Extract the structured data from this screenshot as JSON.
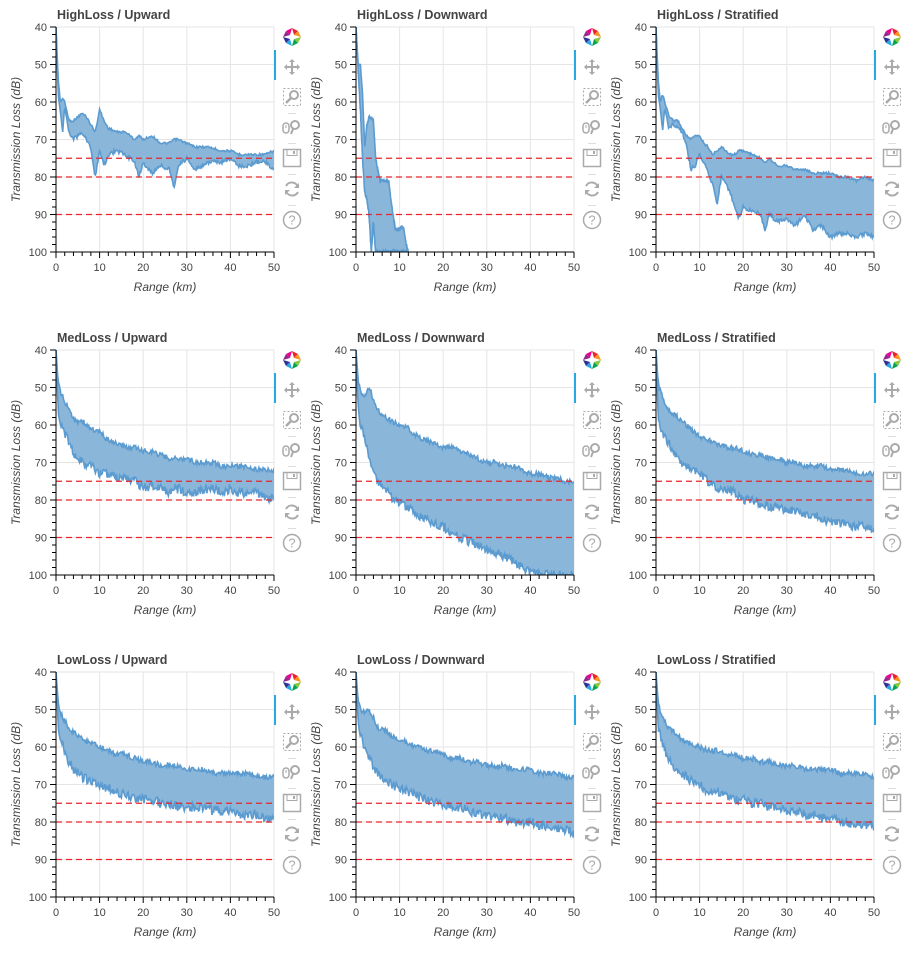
{
  "toolbar": {
    "icons": [
      "bokeh-logo-icon",
      "pan-icon",
      "box-zoom-icon",
      "wheel-zoom-icon",
      "save-icon",
      "reset-icon",
      "help-icon"
    ],
    "active_tool": "pan",
    "line_color": "#5b9bd0",
    "fill_color": "#8ab6da",
    "threshold_color": "#e8262b"
  },
  "chart_data": [
    {
      "type": "area",
      "title": "HighLoss / Upward",
      "xlabel": "Range (km)",
      "ylabel": "Transmission Loss (dB)",
      "xlim": [
        0,
        50
      ],
      "ylim": [
        100,
        40
      ],
      "y_inverted": true,
      "x_ticks": [
        "0",
        "10",
        "20",
        "30",
        "40",
        "50"
      ],
      "y_ticks": [
        "40",
        "50",
        "60",
        "70",
        "80",
        "90",
        "100"
      ],
      "grid": true,
      "thresholds": [
        75,
        80,
        90
      ],
      "x": [
        0,
        0.5,
        1,
        1.5,
        2,
        3,
        4,
        5,
        6,
        7,
        8,
        9,
        10,
        11,
        12,
        14,
        16,
        18,
        19,
        20,
        22,
        24,
        26,
        27,
        28,
        30,
        32,
        35,
        38,
        40,
        42,
        44,
        46,
        48,
        50
      ],
      "upper": [
        40,
        54,
        60,
        59,
        60,
        65,
        65,
        64,
        63,
        64,
        66,
        68,
        62,
        65,
        67,
        68,
        68,
        70,
        69,
        70,
        69,
        71,
        71,
        70,
        70,
        71,
        72,
        72,
        73,
        73,
        74,
        74,
        74,
        74,
        73
      ],
      "lower": [
        40,
        58,
        62,
        68,
        61,
        68,
        70,
        69,
        68,
        70,
        72,
        80,
        73,
        77,
        74,
        73,
        74,
        76,
        80,
        76,
        79,
        77,
        78,
        83,
        77,
        75,
        78,
        76,
        76,
        75,
        77,
        77,
        76,
        76,
        78
      ]
    },
    {
      "type": "area",
      "title": "HighLoss / Downward",
      "xlabel": "Range (km)",
      "ylabel": "Transmission Loss (dB)",
      "xlim": [
        0,
        50
      ],
      "ylim": [
        100,
        40
      ],
      "y_inverted": true,
      "x_ticks": [
        "0",
        "10",
        "20",
        "30",
        "40",
        "50"
      ],
      "y_ticks": [
        "40",
        "50",
        "60",
        "70",
        "80",
        "90",
        "100"
      ],
      "grid": true,
      "thresholds": [
        75,
        80,
        90
      ],
      "x": [
        0,
        0.5,
        1,
        1.5,
        2,
        2.5,
        3,
        3.5,
        4,
        4.5,
        5,
        5.5,
        6,
        7,
        7.5,
        8,
        8.5,
        9,
        10,
        10.5,
        11,
        11.5,
        12
      ],
      "upper": [
        40,
        50,
        50,
        58,
        72,
        66,
        64,
        64,
        65,
        75,
        78,
        81,
        81,
        81,
        81,
        86,
        90,
        94,
        94,
        93,
        94,
        98,
        100
      ],
      "lower": [
        40,
        52,
        62,
        75,
        84,
        86,
        90,
        100,
        92,
        100,
        100,
        100,
        100,
        100,
        100,
        100,
        100,
        100,
        100,
        100,
        100,
        100,
        100
      ]
    },
    {
      "type": "area",
      "title": "HighLoss / Stratified",
      "xlabel": "Range (km)",
      "ylabel": "Transmission Loss (dB)",
      "xlim": [
        0,
        50
      ],
      "ylim": [
        100,
        40
      ],
      "y_inverted": true,
      "x_ticks": [
        "0",
        "10",
        "20",
        "30",
        "40",
        "50"
      ],
      "y_ticks": [
        "40",
        "50",
        "60",
        "70",
        "80",
        "90",
        "100"
      ],
      "grid": true,
      "thresholds": [
        75,
        80,
        90
      ],
      "x": [
        0,
        0.5,
        1,
        1.5,
        2,
        3,
        4,
        5,
        6,
        7,
        8,
        9,
        10,
        11,
        12,
        13,
        14,
        15,
        16,
        17,
        18,
        19,
        20,
        22,
        24,
        25,
        26,
        28,
        30,
        32,
        34,
        36,
        38,
        40,
        42,
        44,
        46,
        48,
        50
      ],
      "upper": [
        40,
        54,
        60,
        58,
        60,
        64,
        65,
        65,
        67,
        69,
        70,
        69,
        69,
        71,
        72,
        74,
        73,
        72,
        73,
        74,
        74,
        73,
        73,
        74,
        75,
        76,
        75,
        77,
        77,
        78,
        78,
        79,
        79,
        79,
        80,
        80,
        81,
        80,
        81
      ],
      "lower": [
        40,
        58,
        62,
        68,
        62,
        67,
        66,
        67,
        68,
        72,
        78,
        77,
        74,
        76,
        79,
        82,
        87,
        80,
        82,
        84,
        88,
        91,
        88,
        89,
        90,
        94,
        90,
        92,
        91,
        93,
        90,
        94,
        93,
        96,
        95,
        95,
        96,
        95,
        96
      ]
    },
    {
      "type": "area",
      "title": "MedLoss / Upward",
      "xlabel": "Range (km)",
      "ylabel": "Transmission Loss (dB)",
      "xlim": [
        0,
        50
      ],
      "ylim": [
        100,
        40
      ],
      "y_inverted": true,
      "x_ticks": [
        "0",
        "10",
        "20",
        "30",
        "40",
        "50"
      ],
      "y_ticks": [
        "40",
        "50",
        "60",
        "70",
        "80",
        "90",
        "100"
      ],
      "grid": true,
      "thresholds": [
        75,
        80,
        90
      ],
      "x": [
        0,
        0.5,
        1,
        2,
        3,
        4,
        5,
        6,
        8,
        10,
        12,
        14,
        16,
        18,
        20,
        22,
        24,
        26,
        28,
        30,
        32,
        34,
        36,
        38,
        40,
        42,
        44,
        46,
        48,
        50
      ],
      "upper": [
        40,
        49,
        51,
        54,
        56,
        58,
        59,
        59,
        61,
        62,
        64,
        65,
        66,
        66,
        67,
        67,
        68,
        69,
        69,
        69,
        70,
        70,
        70,
        71,
        71,
        71,
        71,
        72,
        72,
        72
      ],
      "lower": [
        40,
        56,
        60,
        62,
        65,
        68,
        69,
        70,
        71,
        73,
        73,
        74,
        74,
        75,
        77,
        76,
        77,
        78,
        77,
        78,
        78,
        77,
        77,
        78,
        77,
        78,
        78,
        78,
        79,
        80
      ]
    },
    {
      "type": "area",
      "title": "MedLoss / Downward",
      "xlabel": "Range (km)",
      "ylabel": "Transmission Loss (dB)",
      "xlim": [
        0,
        50
      ],
      "ylim": [
        100,
        40
      ],
      "y_inverted": true,
      "x_ticks": [
        "0",
        "10",
        "20",
        "30",
        "40",
        "50"
      ],
      "y_ticks": [
        "40",
        "50",
        "60",
        "70",
        "80",
        "90",
        "100"
      ],
      "grid": true,
      "thresholds": [
        75,
        80,
        90
      ],
      "x": [
        0,
        0.5,
        1,
        2,
        3,
        4,
        5,
        6,
        8,
        10,
        12,
        14,
        16,
        18,
        20,
        22,
        24,
        26,
        28,
        30,
        32,
        34,
        36,
        38,
        40,
        42,
        44,
        46,
        48,
        50
      ],
      "upper": [
        40,
        48,
        51,
        52,
        50,
        53,
        56,
        57,
        59,
        60,
        61,
        63,
        64,
        65,
        66,
        66,
        67,
        68,
        69,
        70,
        70,
        71,
        71,
        72,
        73,
        73,
        74,
        74,
        75,
        75
      ],
      "lower": [
        40,
        56,
        60,
        64,
        68,
        72,
        75,
        76,
        79,
        81,
        82,
        84,
        85,
        86,
        87,
        89,
        90,
        91,
        92,
        93,
        94,
        95,
        96,
        98,
        99,
        100,
        100,
        100,
        100,
        100
      ]
    },
    {
      "type": "area",
      "title": "MedLoss / Stratified",
      "xlabel": "Range (km)",
      "ylabel": "Transmission Loss (dB)",
      "xlim": [
        0,
        50
      ],
      "ylim": [
        100,
        40
      ],
      "y_inverted": true,
      "x_ticks": [
        "0",
        "10",
        "20",
        "30",
        "40",
        "50"
      ],
      "y_ticks": [
        "40",
        "50",
        "60",
        "70",
        "80",
        "90",
        "100"
      ],
      "grid": true,
      "thresholds": [
        75,
        80,
        90
      ],
      "x": [
        0,
        0.5,
        1,
        2,
        3,
        4,
        5,
        6,
        8,
        10,
        12,
        14,
        16,
        18,
        20,
        22,
        24,
        26,
        28,
        30,
        32,
        34,
        36,
        38,
        40,
        42,
        44,
        46,
        48,
        50
      ],
      "upper": [
        40,
        49,
        51,
        54,
        56,
        57,
        58,
        59,
        61,
        63,
        64,
        65,
        66,
        66,
        67,
        68,
        68,
        69,
        69,
        70,
        70,
        71,
        71,
        71,
        72,
        72,
        72,
        73,
        73,
        73
      ],
      "lower": [
        40,
        58,
        61,
        63,
        65,
        67,
        69,
        70,
        72,
        73,
        75,
        77,
        77,
        78,
        80,
        80,
        81,
        82,
        82,
        83,
        83,
        84,
        84,
        85,
        86,
        86,
        87,
        87,
        87,
        88
      ]
    },
    {
      "type": "area",
      "title": "LowLoss / Upward",
      "xlabel": "Range (km)",
      "ylabel": "Transmission Loss (dB)",
      "xlim": [
        0,
        50
      ],
      "ylim": [
        100,
        40
      ],
      "y_inverted": true,
      "x_ticks": [
        "0",
        "10",
        "20",
        "30",
        "40",
        "50"
      ],
      "y_ticks": [
        "40",
        "50",
        "60",
        "70",
        "80",
        "90",
        "100"
      ],
      "grid": true,
      "thresholds": [
        75,
        80,
        90
      ],
      "x": [
        0,
        0.5,
        1,
        2,
        3,
        4,
        5,
        6,
        8,
        10,
        12,
        14,
        16,
        18,
        20,
        22,
        24,
        26,
        28,
        30,
        32,
        34,
        36,
        38,
        40,
        42,
        44,
        46,
        48,
        50
      ],
      "upper": [
        40,
        48,
        51,
        53,
        55,
        56,
        57,
        58,
        59,
        60,
        61,
        62,
        62,
        63,
        64,
        64,
        65,
        65,
        65,
        66,
        66,
        66,
        67,
        67,
        67,
        67,
        67,
        68,
        68,
        68
      ],
      "lower": [
        40,
        54,
        57,
        61,
        64,
        66,
        67,
        68,
        69,
        70,
        71,
        72,
        73,
        74,
        74,
        74,
        75,
        75,
        76,
        76,
        76,
        76,
        77,
        77,
        77,
        78,
        78,
        78,
        79,
        79
      ]
    },
    {
      "type": "area",
      "title": "LowLoss / Downward",
      "xlabel": "Range (km)",
      "ylabel": "Transmission Loss (dB)",
      "xlim": [
        0,
        50
      ],
      "ylim": [
        100,
        40
      ],
      "y_inverted": true,
      "x_ticks": [
        "0",
        "10",
        "20",
        "30",
        "40",
        "50"
      ],
      "y_ticks": [
        "40",
        "50",
        "60",
        "70",
        "80",
        "90",
        "100"
      ],
      "grid": true,
      "thresholds": [
        75,
        80,
        90
      ],
      "x": [
        0,
        0.5,
        1,
        2,
        3,
        4,
        5,
        6,
        8,
        10,
        12,
        14,
        16,
        18,
        20,
        22,
        24,
        26,
        28,
        30,
        32,
        34,
        36,
        38,
        40,
        42,
        44,
        46,
        48,
        50
      ],
      "upper": [
        40,
        48,
        50,
        51,
        50,
        52,
        55,
        55,
        57,
        58,
        59,
        60,
        61,
        61,
        62,
        63,
        63,
        64,
        64,
        65,
        65,
        65,
        66,
        66,
        66,
        67,
        67,
        67,
        68,
        68
      ],
      "lower": [
        40,
        54,
        57,
        60,
        63,
        65,
        67,
        68,
        70,
        71,
        72,
        73,
        74,
        75,
        75,
        76,
        76,
        77,
        78,
        78,
        79,
        79,
        80,
        80,
        80,
        81,
        81,
        82,
        82,
        83
      ]
    },
    {
      "type": "area",
      "title": "LowLoss / Stratified",
      "xlabel": "Range (km)",
      "ylabel": "Transmission Loss (dB)",
      "xlim": [
        0,
        50
      ],
      "ylim": [
        100,
        40
      ],
      "y_inverted": true,
      "x_ticks": [
        "0",
        "10",
        "20",
        "30",
        "40",
        "50"
      ],
      "y_ticks": [
        "40",
        "50",
        "60",
        "70",
        "80",
        "90",
        "100"
      ],
      "grid": true,
      "thresholds": [
        75,
        80,
        90
      ],
      "x": [
        0,
        0.5,
        1,
        2,
        3,
        4,
        5,
        6,
        8,
        10,
        12,
        14,
        16,
        18,
        20,
        22,
        24,
        26,
        28,
        30,
        32,
        34,
        36,
        38,
        40,
        42,
        44,
        46,
        48,
        50
      ],
      "upper": [
        40,
        48,
        51,
        53,
        55,
        56,
        57,
        58,
        59,
        60,
        61,
        61,
        62,
        62,
        63,
        63,
        64,
        64,
        65,
        65,
        65,
        66,
        66,
        66,
        66,
        67,
        67,
        67,
        67,
        68
      ],
      "lower": [
        40,
        55,
        57,
        61,
        63,
        65,
        66,
        67,
        69,
        70,
        72,
        72,
        73,
        74,
        74,
        75,
        75,
        76,
        76,
        77,
        77,
        78,
        78,
        79,
        79,
        80,
        80,
        81,
        81,
        81
      ]
    }
  ]
}
